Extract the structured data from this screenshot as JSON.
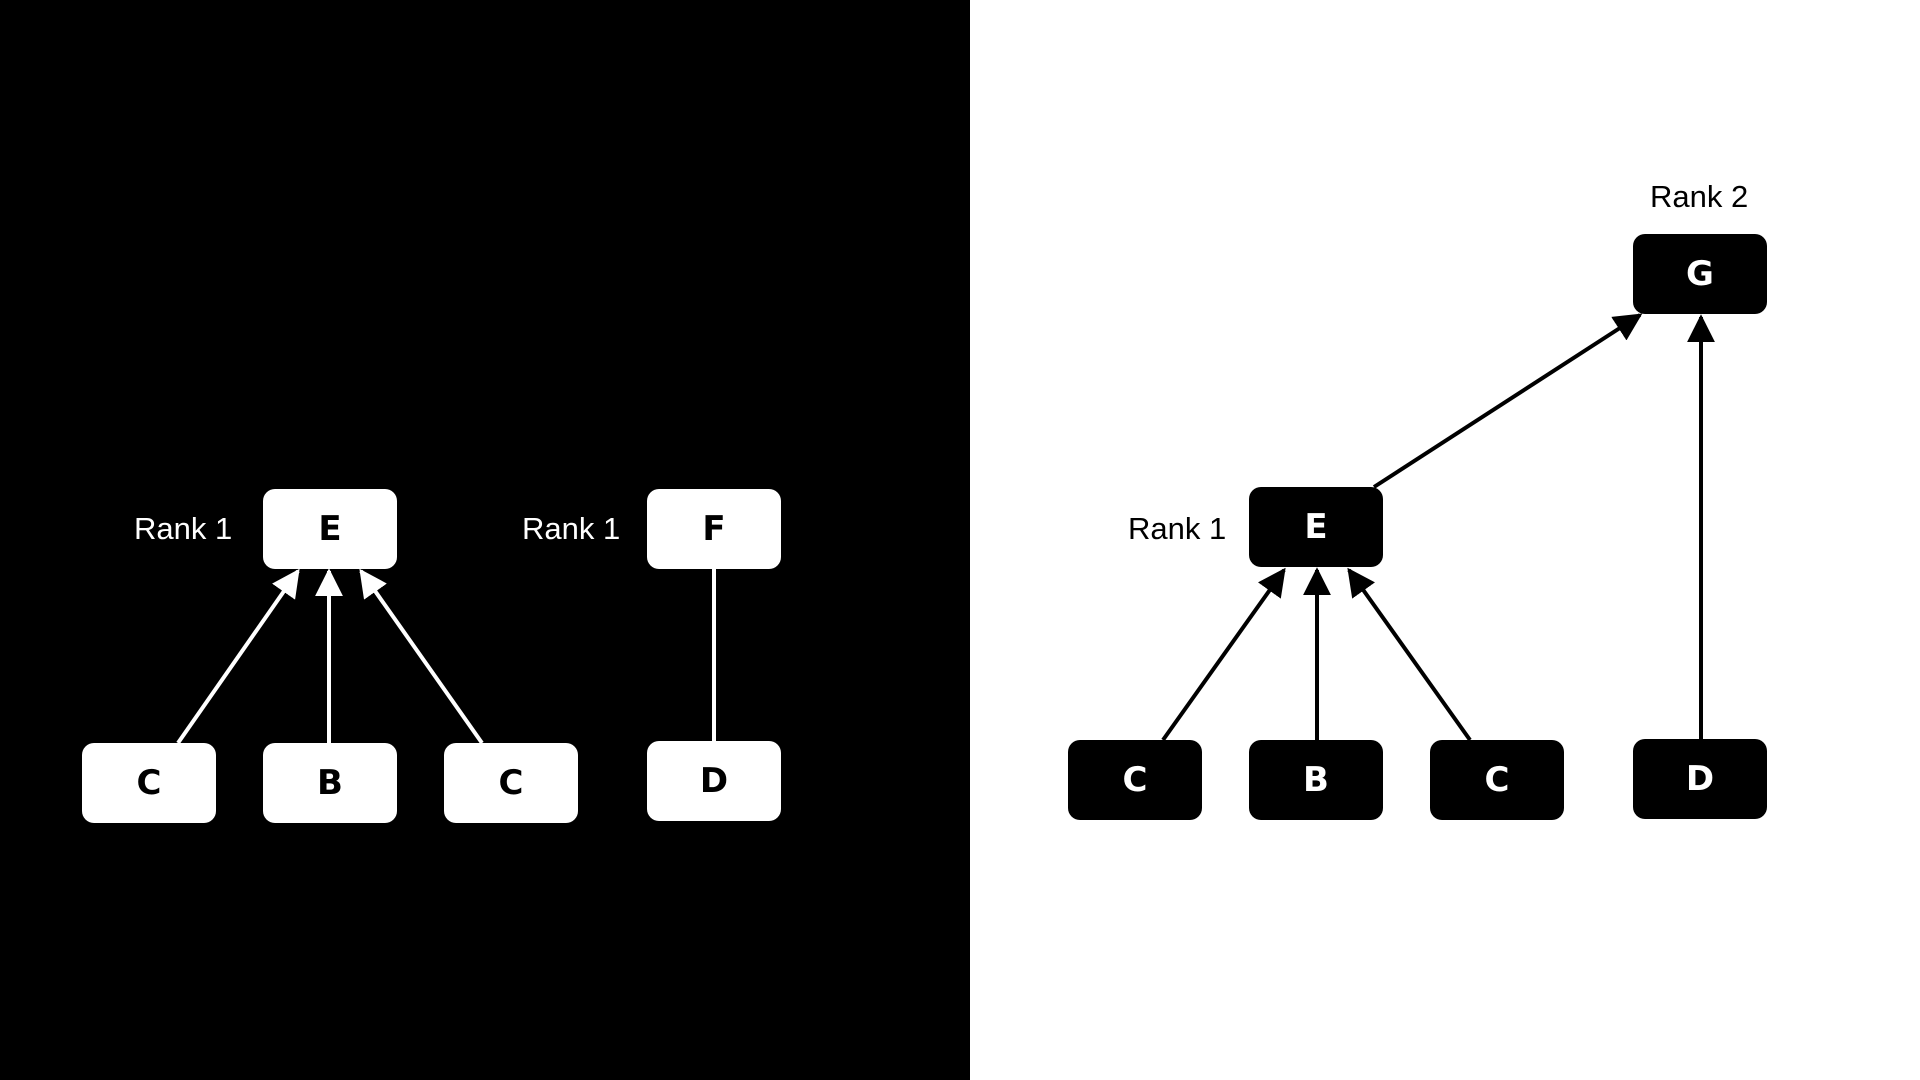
{
  "left": {
    "rank_labels": [
      "Rank 1",
      "Rank 1"
    ],
    "nodes": [
      "E",
      "F",
      "C",
      "B",
      "C",
      "D"
    ]
  },
  "right": {
    "rank_labels": [
      "Rank 2",
      "Rank 1"
    ],
    "nodes": [
      "G",
      "E",
      "C",
      "B",
      "C",
      "D"
    ]
  },
  "colors": {
    "dark": "#000000",
    "light": "#ffffff"
  }
}
